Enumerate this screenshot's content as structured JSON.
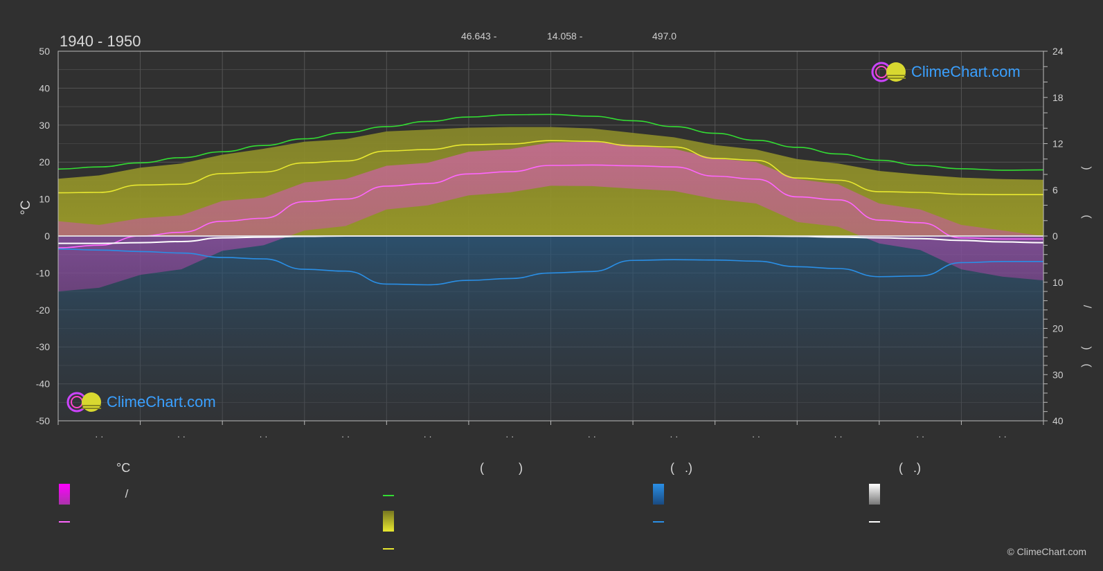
{
  "header": {
    "period": "1940 - 1950",
    "lat": "46.643 -",
    "lon": "14.058 -",
    "elevation": "497.0"
  },
  "branding": {
    "logo_text": "ClimeChart.com",
    "copyright": "© ClimeChart.com"
  },
  "chart_data": {
    "type": "line",
    "title": "1940 - 1950",
    "ylabel_left": "°C",
    "ylim_left": [
      -50,
      50
    ],
    "yticks_left": [
      50,
      40,
      30,
      20,
      10,
      0,
      -10,
      -20,
      -30,
      -40,
      -50
    ],
    "ylim_right_top": [
      0,
      24
    ],
    "yticks_right_top": [
      24,
      18,
      12,
      6,
      0
    ],
    "ylim_right_bottom": [
      0,
      40
    ],
    "yticks_right_bottom": [
      10,
      20,
      30,
      40
    ],
    "ylabel_right_glyphs": [
      ")",
      "(",
      "/",
      ")",
      "("
    ],
    "x": [
      0,
      0.5,
      1,
      1.5,
      2,
      2.5,
      3,
      3.5,
      4,
      4.5,
      5,
      5.5,
      6,
      6.5,
      7,
      7.5,
      8,
      8.5,
      9,
      9.5,
      10,
      10.5,
      11,
      11.5,
      12
    ],
    "month_tick_labels": [
      "· ·",
      "· ·",
      "· ·",
      "· ·",
      "· ·",
      "· ·",
      "· ·",
      "· ·",
      "· ·",
      "· ·",
      "· ·",
      "· ·"
    ],
    "series": [
      {
        "key": "daylight",
        "color": "#33dd33",
        "values": [
          18.1,
          18.7,
          19.8,
          21.2,
          22.8,
          24.5,
          26.3,
          28.0,
          29.6,
          31.0,
          32.2,
          32.8,
          32.9,
          32.4,
          31.2,
          29.6,
          27.8,
          25.9,
          24.0,
          22.2,
          20.5,
          19.1,
          18.2,
          17.8,
          17.9
        ]
      },
      {
        "key": "sunshine",
        "color": "#e8e830",
        "values": [
          11.7,
          11.8,
          13.8,
          14.0,
          16.9,
          17.3,
          19.8,
          20.3,
          23.0,
          23.4,
          24.7,
          24.9,
          25.8,
          25.6,
          24.4,
          24.1,
          21.0,
          20.5,
          15.7,
          15.1,
          12.0,
          11.8,
          11.3,
          11.2,
          11.2
        ]
      },
      {
        "key": "avg_temp",
        "color": "#ff66ff",
        "values": [
          -3.2,
          -2.5,
          0.0,
          1.0,
          4.0,
          4.8,
          9.3,
          10.0,
          13.5,
          14.2,
          16.8,
          17.4,
          19.1,
          19.2,
          19.0,
          18.7,
          16.2,
          15.4,
          10.6,
          9.8,
          4.3,
          3.6,
          -0.5,
          -0.8,
          -0.8
        ]
      },
      {
        "key": "snow",
        "color": "#ffffff",
        "values": [
          -2.0,
          -2.0,
          -1.8,
          -1.5,
          -0.5,
          -0.3,
          -0.1,
          0.0,
          0.0,
          0.0,
          0.0,
          0.0,
          0.0,
          0.0,
          0.0,
          0.0,
          0.0,
          0.0,
          -0.1,
          -0.3,
          -0.5,
          -0.7,
          -1.2,
          -1.6,
          -1.8
        ]
      },
      {
        "key": "precip",
        "color": "#2a8fe6",
        "values": [
          -3.5,
          -3.8,
          -4.2,
          -4.6,
          -5.8,
          -6.2,
          -9.0,
          -9.5,
          -13.0,
          -13.2,
          -12.0,
          -11.5,
          -10.0,
          -9.6,
          -6.6,
          -6.4,
          -6.5,
          -6.8,
          -8.3,
          -8.8,
          -11.0,
          -10.8,
          -7.2,
          -6.9,
          -6.9
        ]
      }
    ],
    "bands": {
      "daylight_band_top": [
        15.5,
        16.4,
        18.5,
        19.6,
        22.0,
        23.6,
        25.5,
        26.2,
        28.3,
        28.8,
        29.3,
        29.5,
        29.5,
        29.1,
        27.9,
        26.7,
        24.6,
        23.4,
        20.8,
        19.6,
        17.6,
        16.6,
        15.8,
        15.4,
        15.2
      ],
      "temp_band_top": [
        4.0,
        3.0,
        4.8,
        5.6,
        9.5,
        10.4,
        14.5,
        15.4,
        19.0,
        19.8,
        22.8,
        23.5,
        25.3,
        25.5,
        24.6,
        23.6,
        21.0,
        20.0,
        15.4,
        14.0,
        8.8,
        7.2,
        3.0,
        1.5,
        0.0
      ],
      "temp_band_bottom": [
        -15.0,
        -14.0,
        -10.5,
        -9.0,
        -4.0,
        -2.5,
        1.5,
        2.7,
        7.2,
        8.3,
        11.0,
        11.8,
        13.6,
        13.5,
        12.8,
        12.2,
        10.0,
        8.8,
        3.8,
        2.5,
        -2.0,
        -3.8,
        -9.0,
        -11.0,
        -12.0
      ]
    },
    "legend_headers": [
      "°C",
      "(          )",
      "(   .)",
      "(   .)"
    ],
    "legend_items": [
      {
        "kind": "block",
        "color_top": "#ff00ff",
        "color_bottom": "#aa33aa",
        "label": "                /"
      },
      {
        "kind": "line",
        "color": "#ff66ff",
        "label": ""
      },
      {
        "kind": "line",
        "color": "#33dd33",
        "label": ""
      },
      {
        "kind": "block",
        "color_top": "#e8e830",
        "color_bottom": "#777720",
        "label": ""
      },
      {
        "kind": "line",
        "color": "#e8e830",
        "label": ""
      },
      {
        "kind": "block",
        "color_top": "#2a8fe6",
        "color_bottom": "#1a4a80",
        "label": ""
      },
      {
        "kind": "line",
        "color": "#2a8fe6",
        "label": ""
      },
      {
        "kind": "block",
        "color_top": "#ffffff",
        "color_bottom": "#777777",
        "label": ""
      },
      {
        "kind": "line",
        "color": "#ffffff",
        "label": ""
      }
    ],
    "grid": true,
    "legend_position": "bottom"
  }
}
